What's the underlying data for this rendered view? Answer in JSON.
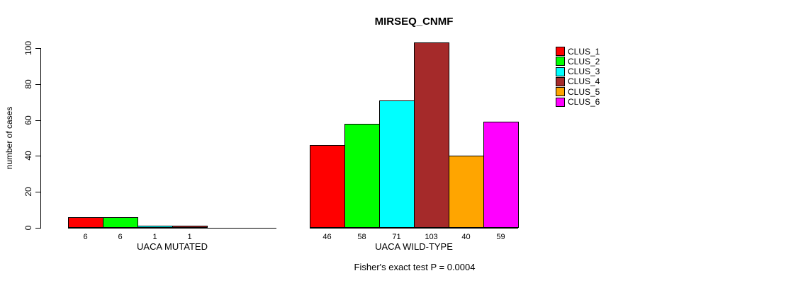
{
  "chart_data": {
    "type": "bar",
    "title": "MIRSEQ_CNMF",
    "ylabel": "number of cases",
    "ylim": [
      0,
      100
    ],
    "yticks": [
      0,
      20,
      40,
      60,
      80,
      100
    ],
    "grid": false,
    "legend_position": "right",
    "series": [
      {
        "name": "CLUS_1",
        "color": "#FF0000"
      },
      {
        "name": "CLUS_2",
        "color": "#00FF00"
      },
      {
        "name": "CLUS_3",
        "color": "#00FFFF"
      },
      {
        "name": "CLUS_4",
        "color": "#A52A2A"
      },
      {
        "name": "CLUS_5",
        "color": "#FFA500"
      },
      {
        "name": "CLUS_6",
        "color": "#FF00FF"
      }
    ],
    "groups": [
      {
        "label": "UACA MUTATED",
        "values": [
          6,
          6,
          1,
          1,
          0,
          0
        ],
        "value_labels": [
          "6",
          "6",
          "1",
          "1",
          "",
          ""
        ]
      },
      {
        "label": "UACA WILD-TYPE",
        "values": [
          46,
          58,
          71,
          103,
          40,
          59
        ],
        "value_labels": [
          "46",
          "58",
          "71",
          "103",
          "40",
          "59"
        ]
      }
    ],
    "annotation": "Fisher's exact test P = 0.0004"
  }
}
